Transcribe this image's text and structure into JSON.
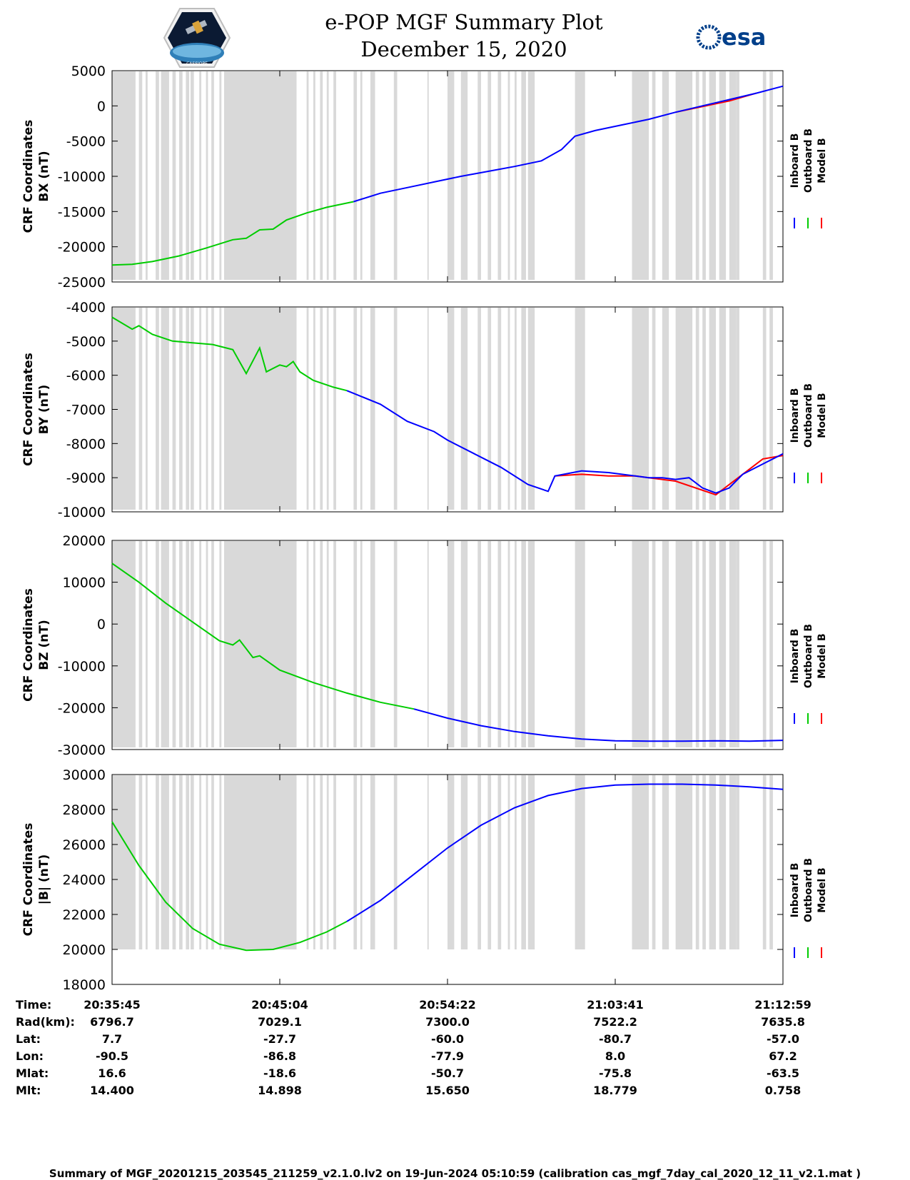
{
  "title": {
    "line1": "e-POP MGF Summary Plot",
    "line2": "December 15, 2020"
  },
  "logos": {
    "left": "CASSIOPE",
    "right": "esa"
  },
  "colors": {
    "inboard": "#0000ff",
    "outboard": "#00cc00",
    "model": "#ff0000",
    "gap": "#d9d9d9"
  },
  "legend": [
    "Inboard B",
    "Outboard B",
    "Model B"
  ],
  "chart_data": [
    {
      "type": "line",
      "ylabel_1": "CRF Coordinates",
      "ylabel_2": "BX (nT)",
      "ylim": [
        -25000,
        5000
      ],
      "yticks": [
        5000,
        0,
        -5000,
        -10000,
        -15000,
        -20000,
        -25000
      ],
      "xlim": [
        0,
        1
      ],
      "xticks": [
        0,
        0.25,
        0.5,
        0.75,
        1
      ],
      "series": [
        {
          "name": "Outboard B",
          "x": [
            0,
            0.03,
            0.06,
            0.1,
            0.14,
            0.18,
            0.2,
            0.22,
            0.24,
            0.26,
            0.29,
            0.32,
            0.36
          ],
          "y": [
            -22600,
            -22500,
            -22100,
            -21300,
            -20200,
            -19000,
            -18800,
            -17600,
            -17500,
            -16200,
            -15200,
            -14400,
            -13600
          ]
        },
        {
          "name": "Inboard B",
          "x": [
            0.36,
            0.4,
            0.44,
            0.48,
            0.52,
            0.56,
            0.6,
            0.64,
            0.67,
            0.69,
            0.72,
            0.76,
            0.8,
            0.84,
            0.88,
            0.92,
            0.96,
            1.0
          ],
          "y": [
            -13600,
            -12400,
            -11600,
            -10800,
            -10000,
            -9300,
            -8600,
            -7800,
            -6200,
            -4300,
            -3500,
            -2700,
            -1900,
            -900,
            0,
            900,
            1800,
            2800
          ]
        },
        {
          "name": "Model B",
          "x": [
            0.84,
            0.88,
            0.92,
            0.96
          ],
          "y": [
            -900,
            -100,
            700,
            1800
          ]
        }
      ]
    },
    {
      "type": "line",
      "ylabel_1": "CRF Coordinates",
      "ylabel_2": "BY (nT)",
      "ylim": [
        -10000,
        -4000
      ],
      "yticks": [
        -4000,
        -5000,
        -6000,
        -7000,
        -8000,
        -9000,
        -10000
      ],
      "xlim": [
        0,
        1
      ],
      "xticks": [
        0,
        0.25,
        0.5,
        0.75,
        1
      ],
      "series": [
        {
          "name": "Outboard B",
          "x": [
            0,
            0.03,
            0.04,
            0.06,
            0.09,
            0.12,
            0.15,
            0.18,
            0.2,
            0.2,
            0.22,
            0.23,
            0.25,
            0.26,
            0.27,
            0.28,
            0.3,
            0.33,
            0.35
          ],
          "y": [
            -4300,
            -4650,
            -4550,
            -4800,
            -5000,
            -5050,
            -5100,
            -5250,
            -5950,
            -5950,
            -5200,
            -5900,
            -5700,
            -5750,
            -5600,
            -5900,
            -6150,
            -6350,
            -6450
          ]
        },
        {
          "name": "Inboard B",
          "x": [
            0.35,
            0.4,
            0.44,
            0.48,
            0.5,
            0.54,
            0.58,
            0.62,
            0.65,
            0.66,
            0.7,
            0.74,
            0.78,
            0.8,
            0.82,
            0.84,
            0.86,
            0.88,
            0.9,
            0.92,
            0.94,
            0.97,
            1.0
          ],
          "y": [
            -6450,
            -6850,
            -7350,
            -7650,
            -7900,
            -8300,
            -8700,
            -9200,
            -9400,
            -8950,
            -8800,
            -8850,
            -8950,
            -9000,
            -9000,
            -9050,
            -9000,
            -9300,
            -9450,
            -9300,
            -8900,
            -8600,
            -8300
          ]
        },
        {
          "name": "Model B",
          "x": [
            0.66,
            0.7,
            0.74,
            0.78,
            0.8,
            0.84,
            0.9,
            0.94,
            0.97,
            1.0
          ],
          "y": [
            -8950,
            -8900,
            -8950,
            -8950,
            -9000,
            -9100,
            -9500,
            -8900,
            -8450,
            -8350
          ]
        }
      ]
    },
    {
      "type": "line",
      "ylabel_1": "CRF Coordinates",
      "ylabel_2": "BZ (nT)",
      "ylim": [
        -30000,
        20000
      ],
      "yticks": [
        20000,
        10000,
        0,
        -10000,
        -20000,
        -30000
      ],
      "xlim": [
        0,
        1
      ],
      "xticks": [
        0,
        0.25,
        0.5,
        0.75,
        1
      ],
      "series": [
        {
          "name": "Outboard B",
          "x": [
            0,
            0.04,
            0.08,
            0.12,
            0.16,
            0.18,
            0.19,
            0.21,
            0.22,
            0.25,
            0.3,
            0.35,
            0.4,
            0.45
          ],
          "y": [
            14500,
            10000,
            5000,
            500,
            -4000,
            -5000,
            -3800,
            -8000,
            -7600,
            -11000,
            -14000,
            -16500,
            -18700,
            -20300
          ]
        },
        {
          "name": "Inboard B",
          "x": [
            0.45,
            0.5,
            0.55,
            0.6,
            0.65,
            0.7,
            0.75,
            0.8,
            0.85,
            0.9,
            0.95,
            1.0
          ],
          "y": [
            -20300,
            -22500,
            -24300,
            -25700,
            -26700,
            -27500,
            -27900,
            -28000,
            -28000,
            -27900,
            -28000,
            -27800
          ]
        }
      ]
    },
    {
      "type": "line",
      "ylabel_1": "CRF Coordinates",
      "ylabel_2": "|B| (nT)",
      "ylim": [
        18000,
        30000
      ],
      "yticks": [
        30000,
        28000,
        26000,
        24000,
        22000,
        20000,
        18000
      ],
      "xlim": [
        0,
        1
      ],
      "xticks": [
        0,
        0.25,
        0.5,
        0.75,
        1
      ],
      "series": [
        {
          "name": "Outboard B",
          "x": [
            0,
            0.04,
            0.08,
            0.12,
            0.16,
            0.2,
            0.24,
            0.28,
            0.32,
            0.35
          ],
          "y": [
            27300,
            24800,
            22700,
            21200,
            20300,
            19950,
            20000,
            20400,
            21000,
            21600
          ]
        },
        {
          "name": "Inboard B",
          "x": [
            0.35,
            0.4,
            0.45,
            0.5,
            0.55,
            0.6,
            0.65,
            0.7,
            0.75,
            0.8,
            0.85,
            0.9,
            0.95,
            1.0
          ],
          "y": [
            21600,
            22800,
            24300,
            25800,
            27100,
            28100,
            28800,
            29200,
            29400,
            29450,
            29450,
            29400,
            29300,
            29150
          ]
        }
      ]
    }
  ],
  "gaps": [
    [
      0.0,
      0.035
    ],
    [
      0.04,
      0.045
    ],
    [
      0.05,
      0.053
    ],
    [
      0.065,
      0.07
    ],
    [
      0.073,
      0.085
    ],
    [
      0.09,
      0.095
    ],
    [
      0.1,
      0.105
    ],
    [
      0.11,
      0.115
    ],
    [
      0.117,
      0.122
    ],
    [
      0.13,
      0.133
    ],
    [
      0.14,
      0.143
    ],
    [
      0.148,
      0.152
    ],
    [
      0.16,
      0.163
    ],
    [
      0.167,
      0.275
    ],
    [
      0.29,
      0.293
    ],
    [
      0.3,
      0.303
    ],
    [
      0.31,
      0.314
    ],
    [
      0.32,
      0.323
    ],
    [
      0.33,
      0.334
    ],
    [
      0.36,
      0.365
    ],
    [
      0.37,
      0.373
    ],
    [
      0.385,
      0.392
    ],
    [
      0.42,
      0.425
    ],
    [
      0.47,
      0.472
    ],
    [
      0.5,
      0.51
    ],
    [
      0.52,
      0.53
    ],
    [
      0.545,
      0.55
    ],
    [
      0.56,
      0.565
    ],
    [
      0.575,
      0.58
    ],
    [
      0.59,
      0.593
    ],
    [
      0.6,
      0.603
    ],
    [
      0.61,
      0.617
    ],
    [
      0.62,
      0.63
    ],
    [
      0.69,
      0.705
    ],
    [
      0.775,
      0.8
    ],
    [
      0.805,
      0.81
    ],
    [
      0.82,
      0.83
    ],
    [
      0.84,
      0.865
    ],
    [
      0.87,
      0.875
    ],
    [
      0.88,
      0.885
    ],
    [
      0.89,
      0.9
    ],
    [
      0.905,
      0.915
    ],
    [
      0.92,
      0.93
    ],
    [
      0.93,
      0.935
    ],
    [
      0.97,
      0.975
    ],
    [
      0.98,
      0.985
    ]
  ],
  "table": {
    "labels": [
      "Time:",
      "Rad(km):",
      "Lat:",
      "Lon:",
      "Mlat:",
      "Mlt:"
    ],
    "columns": [
      [
        "20:35:45",
        "6796.7",
        "7.7",
        "-90.5",
        "16.6",
        "14.400"
      ],
      [
        "20:45:04",
        "7029.1",
        "-27.7",
        "-86.8",
        "-18.6",
        "14.898"
      ],
      [
        "20:54:22",
        "7300.0",
        "-60.0",
        "-77.9",
        "-50.7",
        "15.650"
      ],
      [
        "21:03:41",
        "7522.2",
        "-80.7",
        "8.0",
        "-75.8",
        "18.779"
      ],
      [
        "21:12:59",
        "7635.8",
        "-57.0",
        "67.2",
        "-63.5",
        "0.758"
      ]
    ]
  },
  "footer": "Summary of MGF_20201215_203545_211259_v2.1.0.lv2 on 19-Jun-2024 05:10:59 (calibration cas_mgf_7day_cal_2020_12_11_v2.1.mat )"
}
